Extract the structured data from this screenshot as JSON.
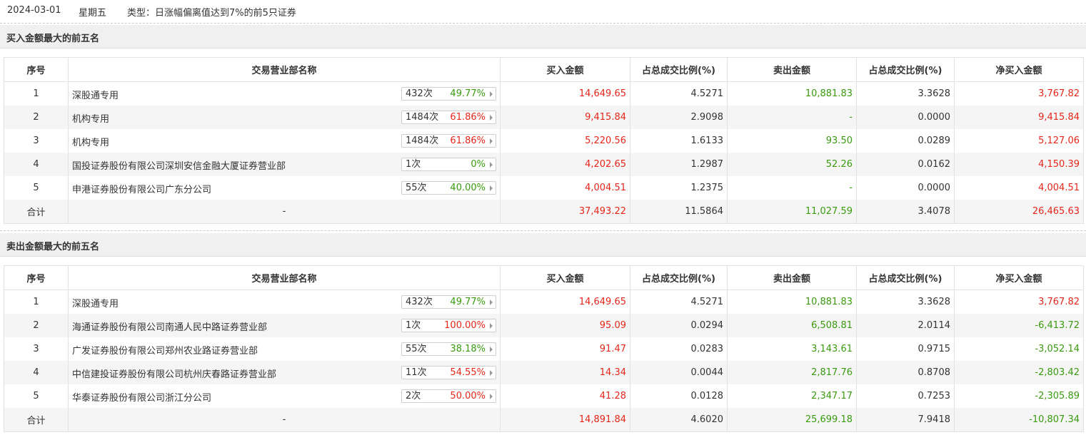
{
  "header": {
    "date": "2024-03-01",
    "weekday": "星期五",
    "type_text": "类型：日涨幅偏离值达到7%的前5只证券"
  },
  "columns": [
    "序号",
    "交易营业部名称",
    "买入金额",
    "占总成交比例(%)",
    "卖出金额",
    "占总成交比例(%)",
    "净买入金额"
  ],
  "colors": {
    "red": "#e4271b",
    "green": "#3a9a11"
  },
  "sections": [
    {
      "title": "买入金额最大的前五名",
      "rows": [
        {
          "no": "1",
          "name": "深股通专用",
          "count": "432次",
          "pct": "49.77%",
          "pct_color": "green",
          "buy": "14,649.65",
          "buy_ratio": "4.5271",
          "sell": "10,881.83",
          "sell_ratio": "3.3628",
          "net": "3,767.82",
          "net_color": "red"
        },
        {
          "no": "2",
          "name": "机构专用",
          "count": "1484次",
          "pct": "61.86%",
          "pct_color": "red",
          "buy": "9,415.84",
          "buy_ratio": "2.9098",
          "sell": "-",
          "sell_ratio": "0.0000",
          "net": "9,415.84",
          "net_color": "red"
        },
        {
          "no": "3",
          "name": "机构专用",
          "count": "1484次",
          "pct": "61.86%",
          "pct_color": "red",
          "buy": "5,220.56",
          "buy_ratio": "1.6133",
          "sell": "93.50",
          "sell_ratio": "0.0289",
          "net": "5,127.06",
          "net_color": "red"
        },
        {
          "no": "4",
          "name": "国投证券股份有限公司深圳安信金融大厦证券营业部",
          "count": "1次",
          "pct": "0%",
          "pct_color": "green",
          "buy": "4,202.65",
          "buy_ratio": "1.2987",
          "sell": "52.26",
          "sell_ratio": "0.0162",
          "net": "4,150.39",
          "net_color": "red"
        },
        {
          "no": "5",
          "name": "申港证券股份有限公司广东分公司",
          "count": "55次",
          "pct": "40.00%",
          "pct_color": "green",
          "buy": "4,004.51",
          "buy_ratio": "1.2375",
          "sell": "-",
          "sell_ratio": "0.0000",
          "net": "4,004.51",
          "net_color": "red"
        }
      ],
      "total": {
        "label": "合计",
        "name": "-",
        "buy": "37,493.22",
        "buy_ratio": "11.5864",
        "sell": "11,027.59",
        "sell_ratio": "3.4078",
        "net": "26,465.63",
        "net_color": "red"
      }
    },
    {
      "title": "卖出金额最大的前五名",
      "rows": [
        {
          "no": "1",
          "name": "深股通专用",
          "count": "432次",
          "pct": "49.77%",
          "pct_color": "green",
          "buy": "14,649.65",
          "buy_ratio": "4.5271",
          "sell": "10,881.83",
          "sell_ratio": "3.3628",
          "net": "3,767.82",
          "net_color": "red"
        },
        {
          "no": "2",
          "name": "海通证券股份有限公司南通人民中路证券营业部",
          "count": "1次",
          "pct": "100.00%",
          "pct_color": "red",
          "buy": "95.09",
          "buy_ratio": "0.0294",
          "sell": "6,508.81",
          "sell_ratio": "2.0114",
          "net": "-6,413.72",
          "net_color": "green"
        },
        {
          "no": "3",
          "name": "广发证券股份有限公司郑州农业路证券营业部",
          "count": "55次",
          "pct": "38.18%",
          "pct_color": "green",
          "buy": "91.47",
          "buy_ratio": "0.0283",
          "sell": "3,143.61",
          "sell_ratio": "0.9715",
          "net": "-3,052.14",
          "net_color": "green"
        },
        {
          "no": "4",
          "name": "中信建投证券股份有限公司杭州庆春路证券营业部",
          "count": "11次",
          "pct": "54.55%",
          "pct_color": "red",
          "buy": "14.34",
          "buy_ratio": "0.0044",
          "sell": "2,817.76",
          "sell_ratio": "0.8708",
          "net": "-2,803.42",
          "net_color": "green"
        },
        {
          "no": "5",
          "name": "华泰证券股份有限公司浙江分公司",
          "count": "2次",
          "pct": "50.00%",
          "pct_color": "red",
          "buy": "41.28",
          "buy_ratio": "0.0128",
          "sell": "2,347.17",
          "sell_ratio": "0.7253",
          "net": "-2,305.89",
          "net_color": "green"
        }
      ],
      "total": {
        "label": "合计",
        "name": "-",
        "buy": "14,891.84",
        "buy_ratio": "4.6020",
        "sell": "25,699.18",
        "sell_ratio": "7.9418",
        "net": "-10,807.34",
        "net_color": "green"
      }
    }
  ]
}
